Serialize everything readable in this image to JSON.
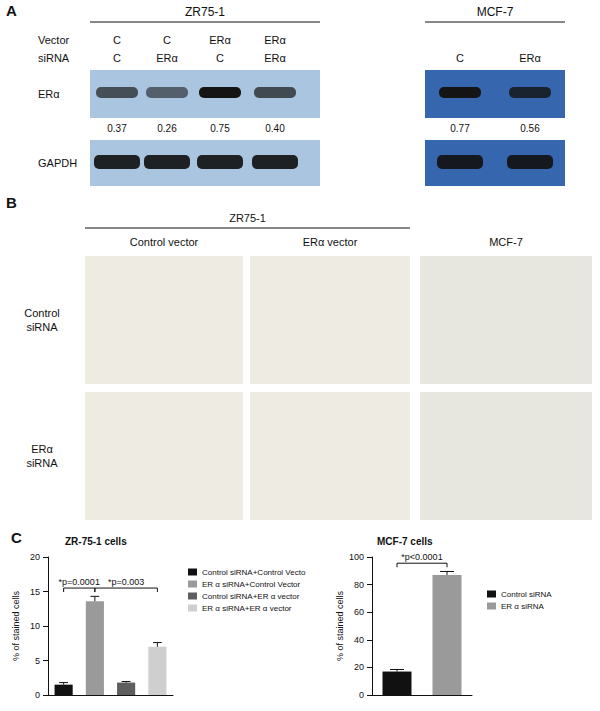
{
  "panels": {
    "A": {
      "label": "A",
      "row_labels": {
        "vector": "Vector",
        "sirna": "siRNA"
      },
      "bands": [
        "ERα",
        "GAPDH"
      ],
      "groups": [
        {
          "name": "ZR75-1",
          "lanes": [
            {
              "vector": "C",
              "sirna": "C",
              "ratio": "0.37"
            },
            {
              "vector": "C",
              "sirna": "ERα",
              "ratio": "0.26"
            },
            {
              "vector": "ERα",
              "sirna": "C",
              "ratio": "0.75"
            },
            {
              "vector": "ERα",
              "sirna": "ERα",
              "ratio": "0.40"
            }
          ]
        },
        {
          "name": "MCF-7",
          "lanes": [
            {
              "vector": null,
              "sirna": "C",
              "ratio": "0.77"
            },
            {
              "vector": null,
              "sirna": "ERα",
              "ratio": "0.56"
            }
          ]
        }
      ]
    },
    "B": {
      "label": "B",
      "group": "ZR75-1",
      "columns": [
        "Control vector",
        "ERα vector",
        "MCF-7"
      ],
      "rows": [
        "Control siRNA",
        "ERα siRNA"
      ]
    },
    "C": {
      "label": "C"
    }
  },
  "chart_data": [
    {
      "type": "bar",
      "title": "ZR-75-1 cells",
      "y_label": "% of stained cells",
      "categories": [
        null,
        null,
        null,
        null
      ],
      "ylim": [
        0,
        20
      ],
      "yticks": [
        0,
        5,
        10,
        15,
        20
      ],
      "grid": false,
      "legend": "right",
      "series": [
        {
          "name": "Control siRNA+Control Vecto",
          "color": "#111111",
          "values": [
            1.5,
            null,
            null,
            null
          ],
          "errors": [
            0.3,
            null,
            null,
            null
          ]
        },
        {
          "name": "ER α siRNA+Control Vector",
          "color": "#9a9a9a",
          "values": [
            null,
            13.6,
            null,
            null
          ],
          "errors": [
            null,
            0.7,
            null,
            null
          ]
        },
        {
          "name": "Control siRNA+ER α vector",
          "color": "#5e5e5e",
          "values": [
            null,
            null,
            1.8,
            null
          ],
          "errors": [
            null,
            null,
            0.15,
            null
          ]
        },
        {
          "name": "ER α siRNA+ER α vector",
          "color": "#cfcfcf",
          "values": [
            null,
            null,
            null,
            7.0
          ],
          "errors": [
            null,
            null,
            null,
            0.6
          ]
        }
      ],
      "annotations": [
        {
          "text": "*p=0.0001",
          "between": [
            0,
            1
          ]
        },
        {
          "text": "*p=0.003",
          "between": [
            1,
            3
          ]
        }
      ]
    },
    {
      "type": "bar",
      "title": "MCF-7 cells",
      "y_label": "% of stained cells",
      "categories": [
        null,
        null
      ],
      "ylim": [
        0,
        100
      ],
      "yticks": [
        0,
        20,
        40,
        60,
        80,
        100
      ],
      "grid": false,
      "legend": "right",
      "series": [
        {
          "name": "Control siRNA",
          "color": "#111111",
          "values": [
            17,
            null
          ],
          "errors": [
            1.5,
            null
          ]
        },
        {
          "name": "ER α siRNA",
          "color": "#9a9a9a",
          "values": [
            null,
            87
          ],
          "errors": [
            null,
            2.5
          ]
        }
      ],
      "annotations": [
        {
          "text": "*p<0.0001",
          "between": [
            0,
            1
          ]
        }
      ]
    }
  ]
}
